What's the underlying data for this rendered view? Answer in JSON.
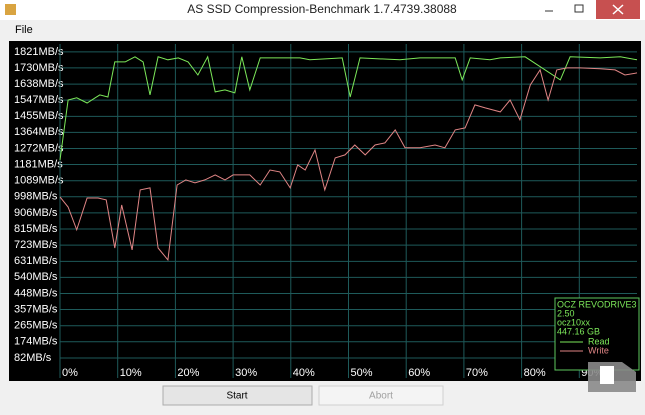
{
  "window": {
    "title": "AS SSD Compression-Benchmark 1.7.4739.38088",
    "menu": [
      "File"
    ],
    "buttons": [
      "Start",
      "Abort"
    ]
  },
  "chart_data": {
    "type": "line",
    "xlim": [
      0,
      100
    ],
    "xticks": [
      {
        "value": 0,
        "label": "0%"
      },
      {
        "value": 10,
        "label": "10%"
      },
      {
        "value": 20,
        "label": "20%"
      },
      {
        "value": 30,
        "label": "30%"
      },
      {
        "value": 40,
        "label": "40%"
      },
      {
        "value": 50,
        "label": "50%"
      },
      {
        "value": 60,
        "label": "60%"
      },
      {
        "value": 70,
        "label": "70%"
      },
      {
        "value": 80,
        "label": "80%"
      },
      {
        "value": 90,
        "label": "90%"
      }
    ],
    "ylim": [
      -32,
      1866
    ],
    "yticks": [
      {
        "value": 1821,
        "label": "1821MB/s"
      },
      {
        "value": 1730,
        "label": "1730MB/s"
      },
      {
        "value": 1638,
        "label": "1638MB/s"
      },
      {
        "value": 1547,
        "label": "1547MB/s"
      },
      {
        "value": 1455,
        "label": "1455MB/s"
      },
      {
        "value": 1364,
        "label": "1364MB/s"
      },
      {
        "value": 1272,
        "label": "1272MB/s"
      },
      {
        "value": 1181,
        "label": "1181MB/s"
      },
      {
        "value": 1089,
        "label": "1089MB/s"
      },
      {
        "value": 998,
        "label": "998MB/s"
      },
      {
        "value": 906,
        "label": "906MB/s"
      },
      {
        "value": 815,
        "label": "815MB/s"
      },
      {
        "value": 723,
        "label": "723MB/s"
      },
      {
        "value": 631,
        "label": "631MB/s"
      },
      {
        "value": 540,
        "label": "540MB/s"
      },
      {
        "value": 448,
        "label": "448MB/s"
      },
      {
        "value": 357,
        "label": "357MB/s"
      },
      {
        "value": 265,
        "label": "265MB/s"
      },
      {
        "value": 174,
        "label": "174MB/s"
      },
      {
        "value": 82,
        "label": "82MB/s"
      }
    ],
    "grid": true,
    "legend": {
      "position": "lower right",
      "info": [
        "OCZ REVODRIVE3",
        "2.50",
        "ocz10xx",
        "447.16 GB"
      ]
    },
    "series": [
      {
        "name": "Read",
        "color": "#7ce85a",
        "x": [
          0,
          1.4,
          2.9,
          4.7,
          6.1,
          6.9,
          8.3,
          9.5,
          11.3,
          13,
          14.4,
          15.6,
          17,
          18.7,
          20.5,
          22.2,
          23.9,
          25.6,
          26.9,
          28.6,
          30.3,
          31.5,
          32.9,
          34.7,
          41.6,
          43.3,
          48.9,
          50.3,
          52,
          58.9,
          62.4,
          68.5,
          69.7,
          71.1,
          74.5,
          76.3,
          80.6,
          86.7,
          88.4,
          93.6,
          97.1,
          100
        ],
        "values": [
          1207,
          1548,
          1560,
          1531,
          1560,
          1577,
          1565,
          1764,
          1764,
          1793,
          1764,
          1577,
          1793,
          1776,
          1787,
          1764,
          1690,
          1793,
          1594,
          1605,
          1588,
          1793,
          1605,
          1787,
          1787,
          1776,
          1787,
          1565,
          1787,
          1776,
          1787,
          1787,
          1662,
          1787,
          1776,
          1787,
          1793,
          1662,
          1793,
          1787,
          1793,
          1776
        ]
      },
      {
        "name": "Write",
        "color": "#e08585",
        "x": [
          0,
          1.4,
          2.9,
          4.7,
          6.6,
          8,
          9.5,
          10.7,
          12.5,
          13.9,
          15.6,
          17,
          18.7,
          20.3,
          21.8,
          23.4,
          25.1,
          26.9,
          28.6,
          30,
          32.9,
          34.7,
          36.4,
          38.1,
          39.9,
          41.2,
          42.5,
          44.2,
          45.9,
          47.7,
          49.4,
          51.1,
          52.9,
          54.6,
          56.3,
          58.1,
          59.8,
          62.4,
          65,
          66.7,
          68.5,
          70.2,
          71.9,
          73.7,
          76.3,
          78,
          79.7,
          81.5,
          83.2,
          84.6,
          86.1,
          87.9,
          90.1,
          93.6,
          96.2,
          97.9,
          100
        ],
        "values": [
          997,
          940,
          810,
          991,
          991,
          980,
          707,
          951,
          696,
          1037,
          1048,
          707,
          639,
          1065,
          1094,
          1077,
          1094,
          1122,
          1094,
          1122,
          1122,
          1065,
          1150,
          1139,
          1048,
          1179,
          1150,
          1264,
          1037,
          1219,
          1236,
          1292,
          1236,
          1292,
          1304,
          1378,
          1276,
          1276,
          1292,
          1276,
          1378,
          1389,
          1520,
          1503,
          1480,
          1548,
          1435,
          1633,
          1719,
          1548,
          1719,
          1730,
          1730,
          1725,
          1719,
          1690,
          1702
        ]
      }
    ]
  }
}
